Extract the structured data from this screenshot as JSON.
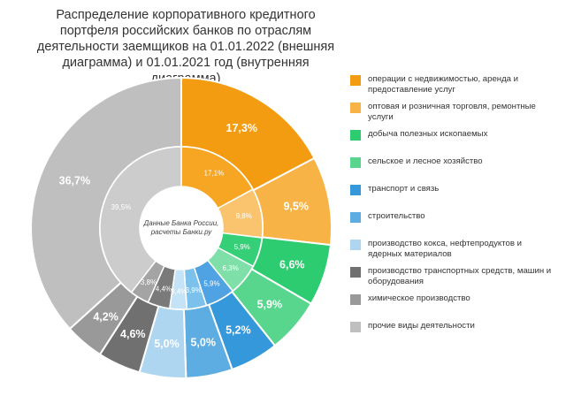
{
  "chart_data": {
    "type": "donut",
    "title": "Распределение корпоративного кредитного портфеля российских банков по отраслям деятельности заемщиков на 01.01.2022 (внешняя диаграмма) и 01.01.2021 год (внутренняя диаграмма)",
    "center_note": [
      "Данные Банка России,",
      "расчеты Банки.ру"
    ],
    "categories": [
      "операции с недвижимостью, аренда и предоставление услуг",
      "оптовая и розничная торговля, ремонтные услуги",
      "добыча полезных ископаемых",
      "сельское и лесное хозяйство",
      "транспорт и связь",
      "строительство",
      "производство кокса, нефтепродуктов и ядерных материалов",
      "производство транспортных средств, машин и оборудования",
      "химическое производство",
      "прочие виды деятельности"
    ],
    "colors": [
      "#F39C12",
      "#F8B347",
      "#2ECC71",
      "#58D68D",
      "#3498DB",
      "#5DADE2",
      "#AED6F1",
      "#707070",
      "#999999",
      "#BFBFBF"
    ],
    "inner_colors": [
      "#F6A623",
      "#FAC46E",
      "#35CF78",
      "#7EE0A8",
      "#4FA3E2",
      "#7CC0EC",
      "#C4E3F7",
      "#7A7A7A",
      "#A4A4A4",
      "#CCCCCC"
    ],
    "series": [
      {
        "values": [
          17.3,
          9.5,
          6.6,
          5.9,
          5.2,
          5.0,
          5.0,
          4.6,
          4.2,
          36.7
        ],
        "labels": [
          "17,3%",
          "9,5%",
          "6,6%",
          "5,9%",
          "5,2%",
          "5,0%",
          "5,0%",
          "4,6%",
          "4,2%",
          "36,7%"
        ]
      },
      {
        "values": [
          17.1,
          9.8,
          5.9,
          6.3,
          5.9,
          3.9,
          3.4,
          4.4,
          3.8,
          39.5
        ],
        "labels": [
          "17,1%",
          "9,8%",
          "5,9%",
          "6,3%",
          "5,9%",
          "3,9%",
          "3,4%",
          "4,4%",
          "3,8%",
          "39,5%"
        ]
      }
    ]
  }
}
